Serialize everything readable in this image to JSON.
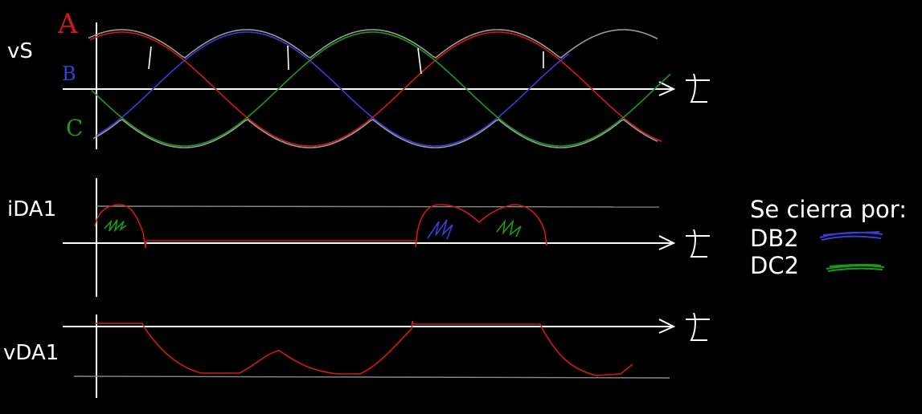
{
  "labels": {
    "vs": "vS",
    "ida1": "iDA1",
    "vda1": "vDA1"
  },
  "phases": {
    "a": "A",
    "b": "B",
    "c": "C"
  },
  "axis_symbol": "t",
  "legend": {
    "title": "Se cierra por:",
    "items": [
      {
        "label": "DB2",
        "color": "#3b3bd6"
      },
      {
        "label": "DC2",
        "color": "#1a9a1a"
      }
    ]
  },
  "colors": {
    "background": "#000000",
    "axis": "#ffffff",
    "phase_a": "#d01818",
    "phase_b": "#3b3bd6",
    "phase_c": "#1a9a1a",
    "envelope": "#9a9a9a",
    "reference": "#8a8a8a"
  }
}
